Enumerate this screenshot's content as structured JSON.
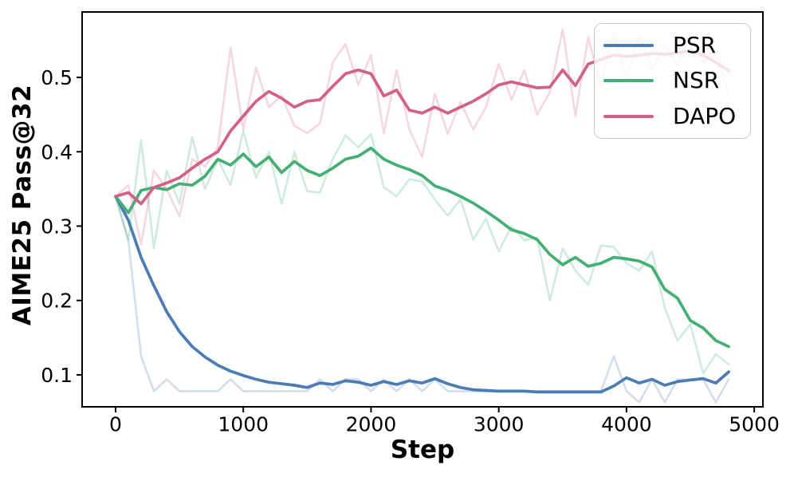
{
  "chart_data": {
    "type": "line",
    "title": "",
    "xlabel": "Step",
    "ylabel": "AIME25 Pass@32",
    "grid": false,
    "legend_position": "upper right",
    "xlim": [
      -262,
      5068
    ],
    "ylim": [
      0.057,
      0.588
    ],
    "x_ticks": [
      {
        "value": 0,
        "label": "0"
      },
      {
        "value": 1000,
        "label": "1000"
      },
      {
        "value": 2000,
        "label": "2000"
      },
      {
        "value": 3000,
        "label": "3000"
      },
      {
        "value": 4000,
        "label": "4000"
      },
      {
        "value": 5000,
        "label": "5000"
      }
    ],
    "y_ticks": [
      {
        "value": 0.1,
        "label": "0.1"
      },
      {
        "value": 0.2,
        "label": "0.2"
      },
      {
        "value": 0.3,
        "label": "0.3"
      },
      {
        "value": 0.4,
        "label": "0.4"
      },
      {
        "value": 0.5,
        "label": "0.5"
      }
    ],
    "x": [
      0,
      100,
      200,
      300,
      400,
      500,
      600,
      700,
      800,
      900,
      1000,
      1100,
      1200,
      1300,
      1400,
      1500,
      1600,
      1700,
      1800,
      1900,
      2000,
      2100,
      2200,
      2300,
      2400,
      2500,
      2600,
      2700,
      2800,
      2900,
      3000,
      3100,
      3200,
      3300,
      3400,
      3500,
      3600,
      3700,
      3800,
      3900,
      4000,
      4100,
      4200,
      4300,
      4400,
      4500,
      4600,
      4700,
      4800
    ],
    "raw_opacity": 0.25,
    "series": [
      {
        "name": "PSR",
        "color": "#4a7cb5",
        "smooth": [
          0.34,
          0.308,
          0.258,
          0.22,
          0.185,
          0.158,
          0.138,
          0.124,
          0.113,
          0.105,
          0.099,
          0.094,
          0.09,
          0.088,
          0.086,
          0.083,
          0.089,
          0.087,
          0.092,
          0.09,
          0.086,
          0.091,
          0.087,
          0.092,
          0.089,
          0.095,
          0.088,
          0.083,
          0.08,
          0.079,
          0.078,
          0.078,
          0.078,
          0.077,
          0.077,
          0.077,
          0.077,
          0.077,
          0.077,
          0.085,
          0.096,
          0.089,
          0.094,
          0.086,
          0.091,
          0.093,
          0.095,
          0.089,
          0.104
        ],
        "raw": [
          0.34,
          0.281,
          0.125,
          0.078,
          0.094,
          0.078,
          0.078,
          0.078,
          0.078,
          0.094,
          0.078,
          0.078,
          0.078,
          0.078,
          0.078,
          0.078,
          0.094,
          0.078,
          0.094,
          0.094,
          0.078,
          0.094,
          0.078,
          0.094,
          0.078,
          0.094,
          0.078,
          0.078,
          0.078,
          0.078,
          0.078,
          0.078,
          0.078,
          0.078,
          0.078,
          0.078,
          0.078,
          0.078,
          0.078,
          0.125,
          0.078,
          0.063,
          0.094,
          0.063,
          0.094,
          0.094,
          0.094,
          0.063,
          0.094
        ]
      },
      {
        "name": "NSR",
        "color": "#44af73",
        "smooth": [
          0.34,
          0.318,
          0.348,
          0.352,
          0.349,
          0.357,
          0.355,
          0.367,
          0.39,
          0.382,
          0.397,
          0.38,
          0.393,
          0.372,
          0.387,
          0.375,
          0.368,
          0.378,
          0.39,
          0.394,
          0.405,
          0.39,
          0.382,
          0.376,
          0.368,
          0.354,
          0.348,
          0.34,
          0.331,
          0.32,
          0.308,
          0.295,
          0.29,
          0.282,
          0.262,
          0.248,
          0.258,
          0.246,
          0.25,
          0.258,
          0.256,
          0.253,
          0.245,
          0.215,
          0.203,
          0.173,
          0.163,
          0.146,
          0.138
        ],
        "raw": [
          0.34,
          0.281,
          0.416,
          0.27,
          0.375,
          0.33,
          0.42,
          0.35,
          0.39,
          0.355,
          0.428,
          0.365,
          0.4,
          0.33,
          0.4,
          0.347,
          0.345,
          0.39,
          0.422,
          0.406,
          0.424,
          0.352,
          0.34,
          0.363,
          0.36,
          0.336,
          0.314,
          0.336,
          0.282,
          0.31,
          0.266,
          0.3,
          0.281,
          0.285,
          0.2,
          0.27,
          0.24,
          0.221,
          0.274,
          0.272,
          0.25,
          0.24,
          0.266,
          0.19,
          0.146,
          0.168,
          0.102,
          0.128,
          0.114
        ]
      },
      {
        "name": "DAPO",
        "color": "#d2608a",
        "smooth": [
          0.34,
          0.345,
          0.33,
          0.352,
          0.358,
          0.365,
          0.378,
          0.39,
          0.4,
          0.428,
          0.448,
          0.468,
          0.481,
          0.472,
          0.46,
          0.468,
          0.47,
          0.488,
          0.505,
          0.51,
          0.505,
          0.475,
          0.483,
          0.456,
          0.452,
          0.46,
          0.452,
          0.46,
          0.468,
          0.478,
          0.49,
          0.494,
          0.49,
          0.486,
          0.487,
          0.51,
          0.489,
          0.518,
          0.524,
          0.53,
          0.528,
          0.53,
          0.532,
          0.531,
          0.533,
          0.536,
          0.53,
          0.52,
          0.509
        ],
        "raw": [
          0.34,
          0.355,
          0.275,
          0.375,
          0.35,
          0.313,
          0.39,
          0.38,
          0.406,
          0.54,
          0.43,
          0.513,
          0.46,
          0.475,
          0.435,
          0.425,
          0.438,
          0.52,
          0.545,
          0.49,
          0.53,
          0.425,
          0.51,
          0.43,
          0.393,
          0.478,
          0.424,
          0.467,
          0.43,
          0.46,
          0.518,
          0.47,
          0.51,
          0.45,
          0.48,
          0.565,
          0.448,
          0.554,
          0.49,
          0.56,
          0.5,
          0.558,
          0.51,
          0.545,
          0.515,
          0.56,
          0.52,
          0.54,
          0.475
        ]
      }
    ]
  }
}
